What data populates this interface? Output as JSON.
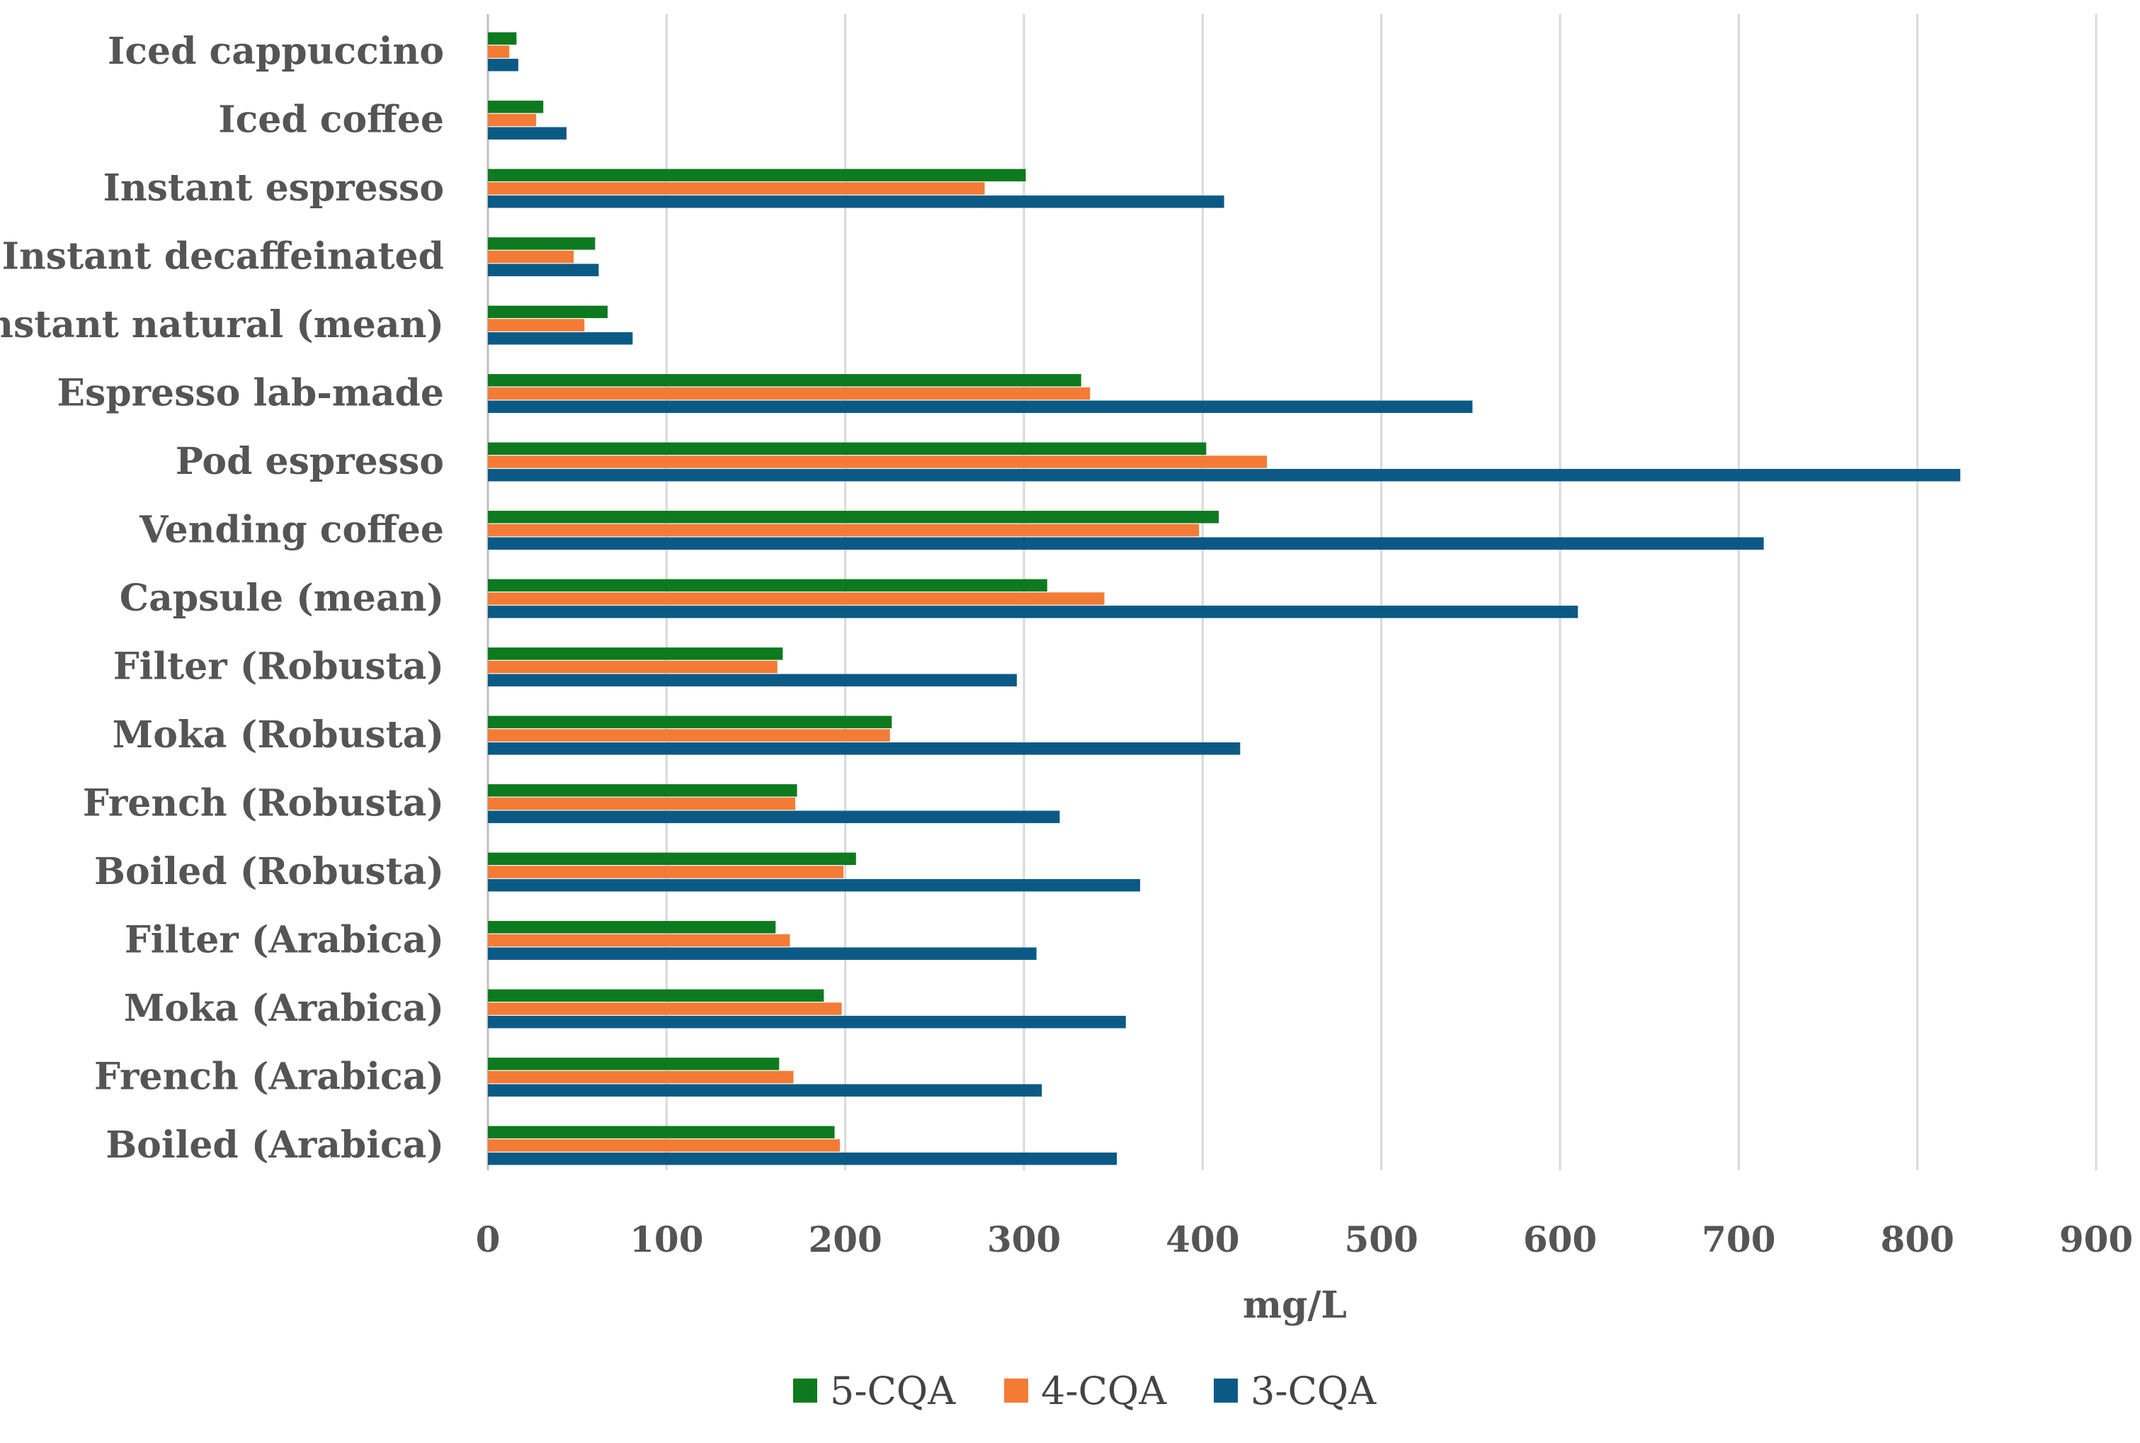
{
  "chart_data": {
    "type": "bar",
    "orientation": "horizontal",
    "title": "",
    "xlabel": "mg/L",
    "ylabel": "",
    "xlim": [
      0,
      900
    ],
    "xticks": [
      "0",
      "100",
      "200",
      "300",
      "400",
      "500",
      "600",
      "700",
      "800",
      "900"
    ],
    "grid": "vertical",
    "legend_position": "bottom-center",
    "categories": [
      "Iced cappuccino",
      "Iced coffee",
      "Instant espresso",
      "Instant decaffeinated",
      "Instant natural (mean)",
      "Espresso lab-made",
      "Pod espresso",
      "Vending coffee",
      "Capsule (mean)",
      "Filter (Robusta)",
      "Moka (Robusta)",
      "French (Robusta)",
      "Boiled (Robusta)",
      "Filter (Arabica)",
      "Moka (Arabica)",
      "French (Arabica)",
      "Boiled (Arabica)"
    ],
    "series": [
      {
        "name": "5-CQA",
        "color": "#0d7a1f",
        "values": [
          16,
          31,
          301,
          60,
          67,
          332,
          402,
          409,
          313,
          165,
          226,
          173,
          206,
          161,
          188,
          163,
          194
        ]
      },
      {
        "name": "4-CQA",
        "color": "#f47b35",
        "values": [
          12,
          27,
          278,
          48,
          54,
          337,
          436,
          398,
          345,
          162,
          225,
          172,
          199,
          169,
          198,
          171,
          197
        ]
      },
      {
        "name": "3-CQA",
        "color": "#0b5a86",
        "values": [
          17,
          44,
          412,
          62,
          81,
          551,
          824,
          714,
          610,
          296,
          421,
          320,
          365,
          307,
          357,
          310,
          352
        ]
      }
    ]
  }
}
